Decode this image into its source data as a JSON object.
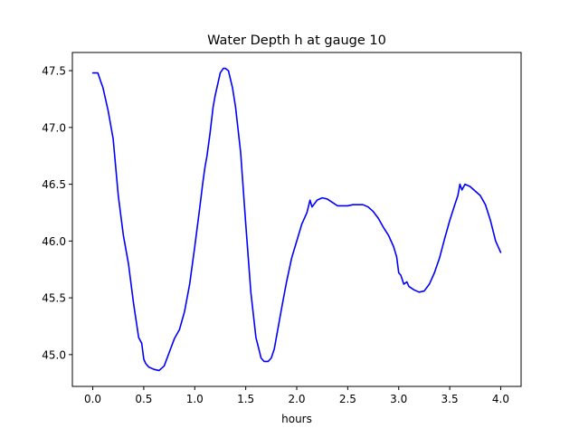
{
  "chart_data": {
    "type": "line",
    "title": "Water Depth h at gauge 10",
    "xlabel": "hours",
    "ylabel": "",
    "xlim": [
      -0.2,
      4.2
    ],
    "ylim": [
      44.72,
      47.66
    ],
    "xticks": [
      0.0,
      0.5,
      1.0,
      1.5,
      2.0,
      2.5,
      3.0,
      3.5,
      4.0
    ],
    "xtick_labels": [
      "0.0",
      "0.5",
      "1.0",
      "1.5",
      "2.0",
      "2.5",
      "3.0",
      "3.5",
      "4.0"
    ],
    "yticks": [
      45.0,
      45.5,
      46.0,
      46.5,
      47.0,
      47.5
    ],
    "ytick_labels": [
      "45.0",
      "45.5",
      "46.0",
      "46.5",
      "47.0",
      "47.5"
    ],
    "grid": false,
    "legend": false,
    "series": [
      {
        "color": "#0000ff",
        "x": [
          0.0,
          0.05,
          0.08,
          0.1,
          0.15,
          0.2,
          0.25,
          0.3,
          0.35,
          0.4,
          0.45,
          0.48,
          0.5,
          0.52,
          0.55,
          0.6,
          0.65,
          0.7,
          0.75,
          0.8,
          0.85,
          0.9,
          0.95,
          1.0,
          1.05,
          1.08,
          1.1,
          1.12,
          1.15,
          1.18,
          1.2,
          1.25,
          1.28,
          1.3,
          1.33,
          1.37,
          1.4,
          1.45,
          1.5,
          1.55,
          1.6,
          1.62,
          1.65,
          1.68,
          1.72,
          1.75,
          1.78,
          1.8,
          1.85,
          1.9,
          1.95,
          2.0,
          2.05,
          2.1,
          2.13,
          2.15,
          2.2,
          2.25,
          2.3,
          2.35,
          2.4,
          2.45,
          2.5,
          2.55,
          2.6,
          2.65,
          2.7,
          2.75,
          2.8,
          2.85,
          2.9,
          2.95,
          2.98,
          3.0,
          3.02,
          3.05,
          3.08,
          3.1,
          3.15,
          3.2,
          3.25,
          3.3,
          3.35,
          3.4,
          3.45,
          3.5,
          3.55,
          3.58,
          3.6,
          3.62,
          3.65,
          3.7,
          3.75,
          3.8,
          3.85,
          3.9,
          3.95,
          4.0
        ],
        "y": [
          47.48,
          47.48,
          47.4,
          47.35,
          47.15,
          46.9,
          46.4,
          46.05,
          45.8,
          45.45,
          45.15,
          45.1,
          44.96,
          44.92,
          44.89,
          44.87,
          44.86,
          44.9,
          45.02,
          45.14,
          45.22,
          45.38,
          45.62,
          45.95,
          46.3,
          46.52,
          46.65,
          46.75,
          46.95,
          47.18,
          47.28,
          47.48,
          47.52,
          47.52,
          47.5,
          47.35,
          47.18,
          46.78,
          46.15,
          45.55,
          45.15,
          45.08,
          44.97,
          44.94,
          44.94,
          44.97,
          45.05,
          45.15,
          45.4,
          45.64,
          45.85,
          46.0,
          46.15,
          46.25,
          46.36,
          46.3,
          46.36,
          46.38,
          46.37,
          46.34,
          46.31,
          46.31,
          46.31,
          46.32,
          46.32,
          46.32,
          46.3,
          46.26,
          46.2,
          46.12,
          46.05,
          45.95,
          45.86,
          45.72,
          45.7,
          45.62,
          45.64,
          45.6,
          45.57,
          45.55,
          45.56,
          45.62,
          45.72,
          45.85,
          46.02,
          46.18,
          46.32,
          46.4,
          46.5,
          46.45,
          46.5,
          46.48,
          46.44,
          46.4,
          46.32,
          46.18,
          46.0,
          45.9
        ]
      }
    ]
  }
}
